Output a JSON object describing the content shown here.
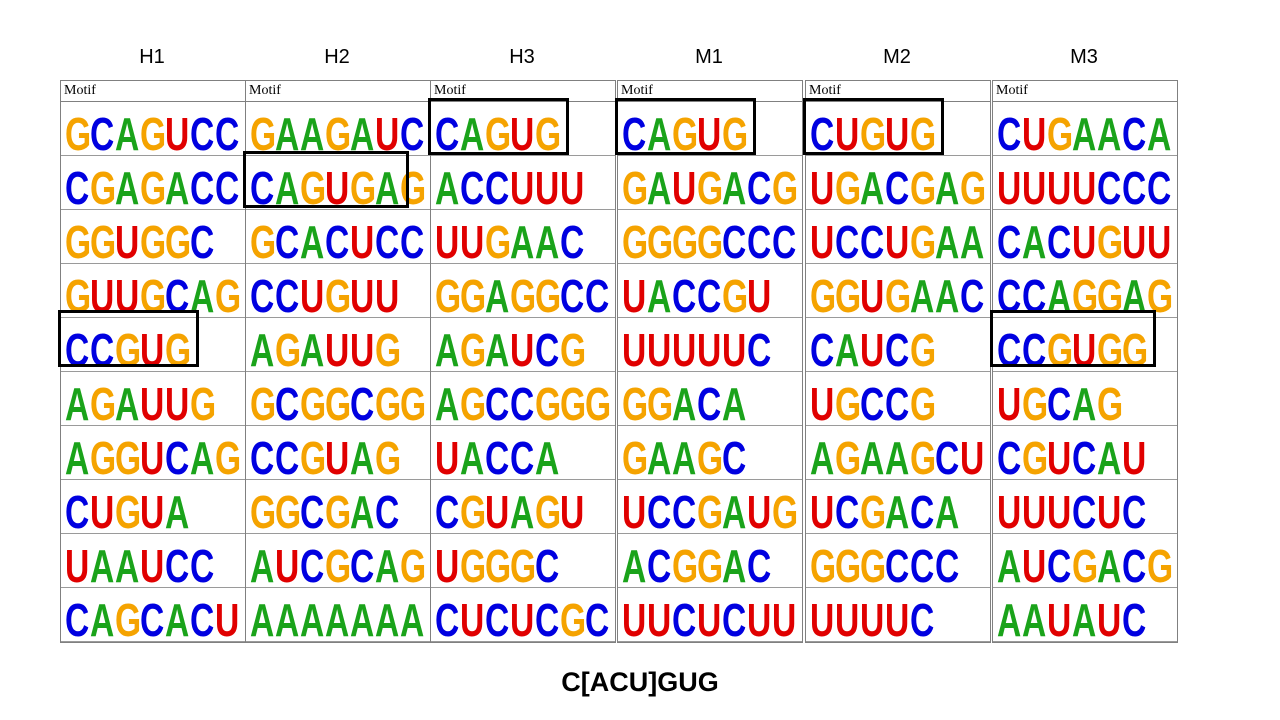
{
  "header_label": "Motif",
  "consensus": "C[ACU]GUG",
  "colors": {
    "A": "#1aa31a",
    "C": "#0000e0",
    "G": "#f5a300",
    "U": "#e00000"
  },
  "columns": [
    {
      "name": "H1",
      "highlight": 4,
      "motifs": [
        "GCAGUCC",
        "CGAGACC",
        "GGUGGC",
        "GUUGCAG",
        "CCGUG",
        "AGAUUG",
        "AGGUCAG",
        "CUGUA",
        "UAAUCC",
        "CAGCACU"
      ]
    },
    {
      "name": "H2",
      "highlight": 1,
      "motifs": [
        "GAAGAUC",
        "CAGUGAG",
        "GCACUCC",
        "CCUGUU",
        "AGAUUG",
        "GCGGCGG",
        "CCGUAG",
        "GGCGAC",
        "AUCGCAG",
        "AAAAAAA"
      ]
    },
    {
      "name": "H3",
      "highlight": 0,
      "motifs": [
        "CAGUG",
        "ACCUUU",
        "UUGAAC",
        "GGAGGCC",
        "AGAUCG",
        "AGCCGGG",
        "UACCA",
        "CGUAGU",
        "UGGGC",
        "CUCUCGC"
      ]
    },
    {
      "name": "M1",
      "highlight": 0,
      "motifs": [
        "CAGUG",
        "GAUGACG",
        "GGGGCCC",
        "UACCGU",
        "UUUUUC",
        "GGACA",
        "GAAGC",
        "UCCGAUG",
        "ACGGAC",
        "UUCUCUU"
      ]
    },
    {
      "name": "M2",
      "highlight": 0,
      "motifs": [
        "CUGUG",
        "UGACGAG",
        "UCCUGAA",
        "GGUGAAC",
        "CAUCG",
        "UGCCG",
        "AGAAGCU",
        "UCGACA",
        "GGGCCC",
        "UUUUC"
      ]
    },
    {
      "name": "M3",
      "highlight": 4,
      "motifs": [
        "CUGAACA",
        "UUUUCCC",
        "CACUGUU",
        "CCAGGAG",
        "CCGUGG",
        "UGCAG",
        "CGUCAU",
        "UUUCUC",
        "AUCGACG",
        "AAUAUC"
      ]
    }
  ]
}
